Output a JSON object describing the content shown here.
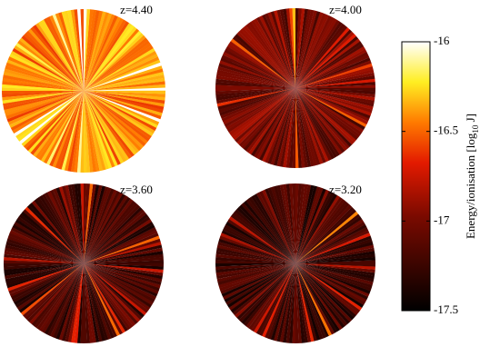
{
  "chart_data": {
    "type": "polar-heatmap",
    "panels": [
      {
        "label": "z=4.40"
      },
      {
        "label": "z=4.00"
      },
      {
        "label": "z=3.60"
      },
      {
        "label": "z=3.20"
      }
    ],
    "colorbar": {
      "label": "Energy/ionisation [log",
      "label_sub": "10",
      "label_end": " J]",
      "clim": [
        -17.5,
        -16
      ],
      "ticks": [
        -16,
        -16.5,
        -17,
        -17.5
      ]
    }
  }
}
